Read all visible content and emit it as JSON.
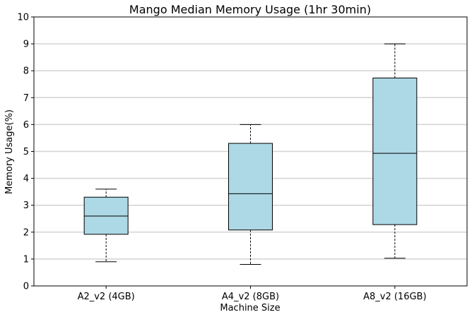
{
  "chart_data": {
    "type": "boxplot",
    "title": "Mango Median Memory Usage (1hr 30min)",
    "xlabel": "Machine Size",
    "ylabel": "Memory Usage(%)",
    "ylim": [
      0,
      10
    ],
    "yticks": [
      "0",
      "1",
      "2",
      "3",
      "4",
      "5",
      "6",
      "7",
      "8",
      "9",
      "10"
    ],
    "grid": "horizontal",
    "categories": [
      "A2_v2 (4GB)",
      "A4_v2 (8GB)",
      "A8_v2 (16GB)"
    ],
    "boxes": [
      {
        "whisker_low": 0.9,
        "q1": 1.92,
        "median": 2.6,
        "q3": 3.3,
        "whisker_high": 3.6
      },
      {
        "whisker_low": 0.8,
        "q1": 2.08,
        "median": 3.43,
        "q3": 5.3,
        "whisker_high": 6.0
      },
      {
        "whisker_low": 1.03,
        "q1": 2.28,
        "median": 4.93,
        "q3": 7.73,
        "whisker_high": 9.0
      }
    ],
    "colors": {
      "box_fill": "#add8e6",
      "box_edge": "#000000",
      "grid": "#d3d3d3"
    }
  }
}
